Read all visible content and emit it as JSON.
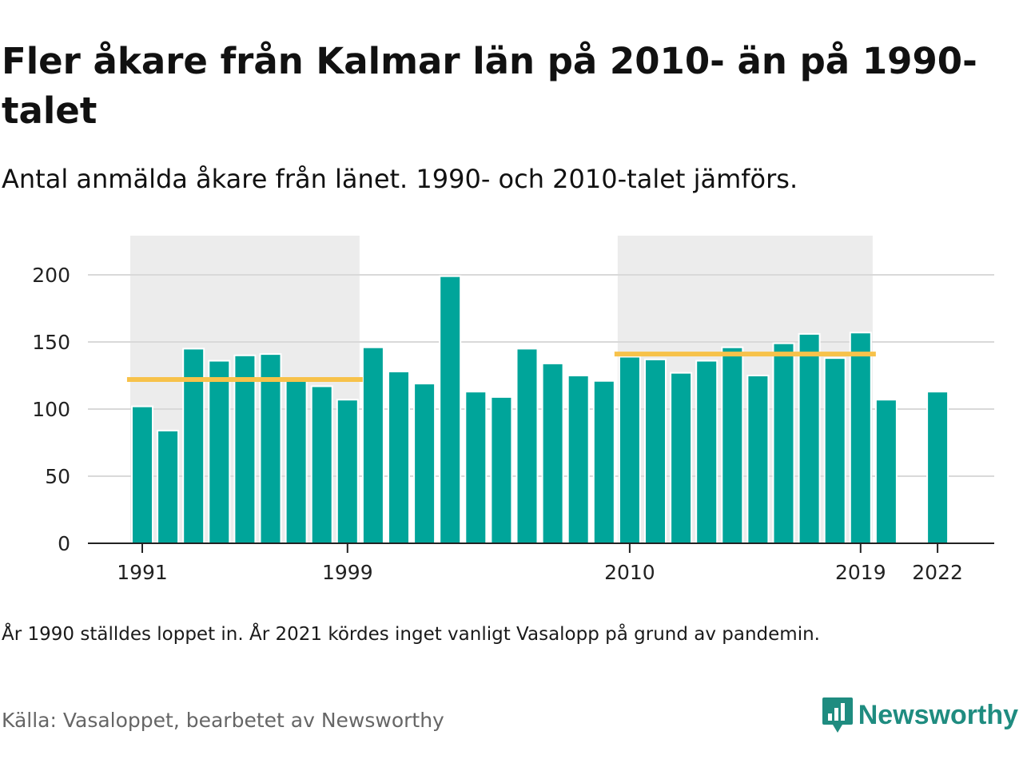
{
  "title": "Fler åkare från Kalmar län på 2010- än på 1990-talet",
  "subtitle": "Antal anmälda åkare från länet. 1990- och 2010-talet jämförs.",
  "note": "År 1990 ställdes loppet in. År 2021 kördes inget vanligt Vasalopp på grund av pandemin.",
  "source": "Källa: Vasaloppet, bearbetet av Newsworthy",
  "logo": {
    "text": "Newsworthy",
    "icon": "newsworthy-logo-icon"
  },
  "colors": {
    "bar": "#00a59a",
    "average": "#f7c24a",
    "decade_band": "#ececec",
    "gridline": "#d9d9d9",
    "logo": "#1f8c80"
  },
  "chart_data": {
    "type": "bar",
    "title": "Fler åkare från Kalmar län på 2010- än på 1990-talet",
    "subtitle": "Antal anmälda åkare från länet. 1990- och 2010-talet jämförs.",
    "xlabel": "",
    "ylabel": "",
    "ylim": [
      0,
      230
    ],
    "yticks": [
      0,
      50,
      100,
      150,
      200
    ],
    "xticks": [
      1991,
      1999,
      2010,
      2019,
      2022
    ],
    "grid": true,
    "x": [
      1991,
      1992,
      1993,
      1994,
      1995,
      1996,
      1997,
      1998,
      1999,
      2000,
      2001,
      2002,
      2003,
      2004,
      2005,
      2006,
      2007,
      2008,
      2009,
      2010,
      2011,
      2012,
      2013,
      2014,
      2015,
      2016,
      2017,
      2018,
      2019,
      2020,
      2021,
      2022
    ],
    "values": [
      102,
      84,
      145,
      136,
      140,
      141,
      122,
      117,
      107,
      146,
      128,
      119,
      199,
      113,
      109,
      145,
      134,
      125,
      121,
      139,
      137,
      127,
      136,
      146,
      125,
      149,
      156,
      138,
      157,
      107,
      null,
      113
    ],
    "decades": [
      {
        "from": 1991,
        "to": 1999,
        "average": 122
      },
      {
        "from": 2010,
        "to": 2019,
        "average": 141
      }
    ]
  }
}
